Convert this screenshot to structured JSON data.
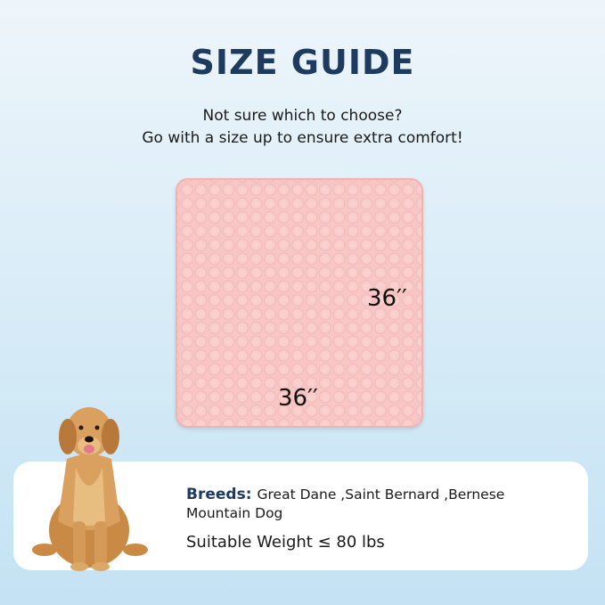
{
  "title": "SIZE GUIDE",
  "subtitle_lines": [
    "Not sure which to choose?",
    "Go with a size up to ensure extra comfort!"
  ],
  "product": {
    "height_label": "36′′",
    "width_label": "36′′",
    "color": "#f8c6c4"
  },
  "info": {
    "breeds_label": "Breeds:",
    "breeds_value": "Great Dane ,Saint Bernard ,Bernese Mountain Dog",
    "weight": "Suitable Weight ≤ 80 lbs"
  }
}
